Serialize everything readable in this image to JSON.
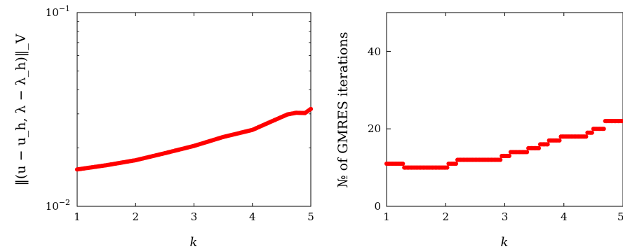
{
  "chart_data": [
    {
      "type": "scatter",
      "xlabel": "k",
      "ylabel": "‖(u − u_h, λ − λ_h)‖_V",
      "xlim": [
        1,
        5
      ],
      "ylim": [
        0.01,
        0.1
      ],
      "yscale": "log",
      "grid": false,
      "xticks": [
        "1",
        "2",
        "3",
        "4",
        "5"
      ],
      "yticks": [
        {
          "value": 0.01,
          "base": "10",
          "exp": "−2"
        },
        {
          "value": 0.1,
          "base": "10",
          "exp": "−1"
        }
      ],
      "marker_color": "#ff0000",
      "curve_points": [
        [
          1.0,
          0.0155
        ],
        [
          1.5,
          0.0163
        ],
        [
          2.0,
          0.0173
        ],
        [
          2.5,
          0.0188
        ],
        [
          3.0,
          0.0205
        ],
        [
          3.5,
          0.0228
        ],
        [
          4.0,
          0.0248
        ],
        [
          4.3,
          0.0272
        ],
        [
          4.6,
          0.0298
        ],
        [
          4.75,
          0.0304
        ],
        [
          4.9,
          0.0303
        ],
        [
          5.0,
          0.0318
        ]
      ],
      "step": 0.025
    },
    {
      "type": "scatter",
      "xlabel": "k",
      "ylabel": "№ of GMRES iterations",
      "xlim": [
        1,
        5
      ],
      "ylim": [
        0,
        50
      ],
      "grid": false,
      "xticks": [
        "1",
        "2",
        "3",
        "4",
        "5"
      ],
      "yticks": [
        "0",
        "20",
        "40"
      ],
      "marker_color": "#ff0000",
      "steps": [
        {
          "from": 1.0,
          "to": 1.3,
          "value": 11
        },
        {
          "from": 1.3,
          "to": 2.05,
          "value": 10
        },
        {
          "from": 2.05,
          "to": 2.2,
          "value": 11
        },
        {
          "from": 2.2,
          "to": 2.95,
          "value": 12
        },
        {
          "from": 2.95,
          "to": 3.1,
          "value": 13
        },
        {
          "from": 3.1,
          "to": 3.4,
          "value": 14
        },
        {
          "from": 3.4,
          "to": 3.6,
          "value": 15
        },
        {
          "from": 3.6,
          "to": 3.75,
          "value": 16
        },
        {
          "from": 3.75,
          "to": 3.95,
          "value": 17
        },
        {
          "from": 3.95,
          "to": 4.4,
          "value": 18
        },
        {
          "from": 4.4,
          "to": 4.5,
          "value": 19
        },
        {
          "from": 4.5,
          "to": 4.7,
          "value": 20
        },
        {
          "from": 4.7,
          "to": 5.0,
          "value": 22
        }
      ],
      "step": 0.025
    }
  ]
}
